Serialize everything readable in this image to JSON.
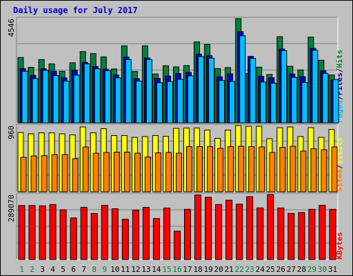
{
  "chart_data": {
    "type": "bar",
    "title": "Daily usage for July 2017",
    "categories": [
      "1",
      "2",
      "3",
      "4",
      "5",
      "6",
      "7",
      "8",
      "9",
      "10",
      "11",
      "12",
      "13",
      "14",
      "15",
      "16",
      "17",
      "18",
      "19",
      "20",
      "21",
      "22",
      "23",
      "24",
      "25",
      "26",
      "27",
      "28",
      "29",
      "30",
      "31"
    ],
    "weekend_days": [
      "1",
      "2",
      "8",
      "9",
      "15",
      "16",
      "22",
      "23",
      "29",
      "30"
    ],
    "panels": [
      {
        "name": "pages-files-hits",
        "ymax_label": "4546",
        "ymax": 4546,
        "right_labels": [
          "Pages",
          "Files",
          "Hits"
        ],
        "series": [
          {
            "name": "Hits",
            "color": "#008040",
            "values": [
              2850,
              2420,
              2760,
              2570,
              2250,
              2620,
              3110,
              3020,
              2880,
              2350,
              3360,
              2240,
              3360,
              2130,
              2490,
              2440,
              2500,
              3530,
              3420,
              2370,
              2410,
              4546,
              2150,
              2430,
              2110,
              3760,
              2470,
              2310,
              3740,
              2730,
              2090
            ]
          },
          {
            "name": "Files",
            "color": "#0000c0",
            "values": [
              2370,
              2070,
              2360,
              2250,
              1960,
              2300,
              2640,
              2460,
              2340,
              2090,
              2870,
              1930,
              2830,
              1940,
              2040,
              2150,
              2200,
              3000,
              2930,
              2010,
              2140,
              3980,
              2900,
              2030,
              1970,
              3220,
              2130,
              2020,
              3250,
              2270,
              1880
            ]
          },
          {
            "name": "Pages",
            "color": "#00c0ff",
            "values": [
              2250,
              1930,
              2290,
              2060,
              1820,
              2080,
              2570,
              2360,
              2270,
              1960,
              2760,
              1820,
              2760,
              1750,
              1800,
              1900,
              2050,
              2890,
              2820,
              1850,
              1800,
              3800,
              2810,
              1780,
              1730,
              3150,
              1980,
              1760,
              3170,
              2160,
              1890
            ]
          }
        ]
      },
      {
        "name": "sites-visits",
        "ymax_label": "960",
        "ymax": 960,
        "right_labels": [
          "Sites",
          "Visits"
        ],
        "series": [
          {
            "name": "Visits",
            "color": "#ffff00",
            "values": [
              860,
              840,
              855,
              855,
              840,
              825,
              940,
              855,
              915,
              815,
              815,
              790,
              800,
              815,
              805,
              920,
              925,
              925,
              895,
              775,
              895,
              960,
              950,
              950,
              770,
              930,
              940,
              800,
              930,
              790,
              905
            ]
          },
          {
            "name": "Sites",
            "color": "#ff8000",
            "values": [
              500,
              520,
              525,
              540,
              540,
              480,
              650,
              560,
              570,
              575,
              575,
              560,
              505,
              565,
              570,
              560,
              655,
              655,
              655,
              630,
              655,
              660,
              655,
              650,
              570,
              645,
              660,
              590,
              625,
              610,
              650
            ]
          }
        ]
      },
      {
        "name": "kbytes",
        "ymax_label": "289070",
        "ymax": 289070,
        "right_labels": [
          "KBytes"
        ],
        "series": [
          {
            "name": "KBytes",
            "color": "#ff0000",
            "values": [
              240480,
              240480,
              238880,
              244690,
              221120,
              185100,
              232480,
              204830,
              241480,
              226120,
              179040,
              220160,
              232160,
              182320,
              229000,
              126100,
              223430,
              287150,
              277230,
              244690,
              264140,
              246470,
              279810,
              229800,
              289070,
              229360,
              205160,
              209200,
              223430,
              241480,
              223430
            ]
          }
        ]
      }
    ]
  }
}
